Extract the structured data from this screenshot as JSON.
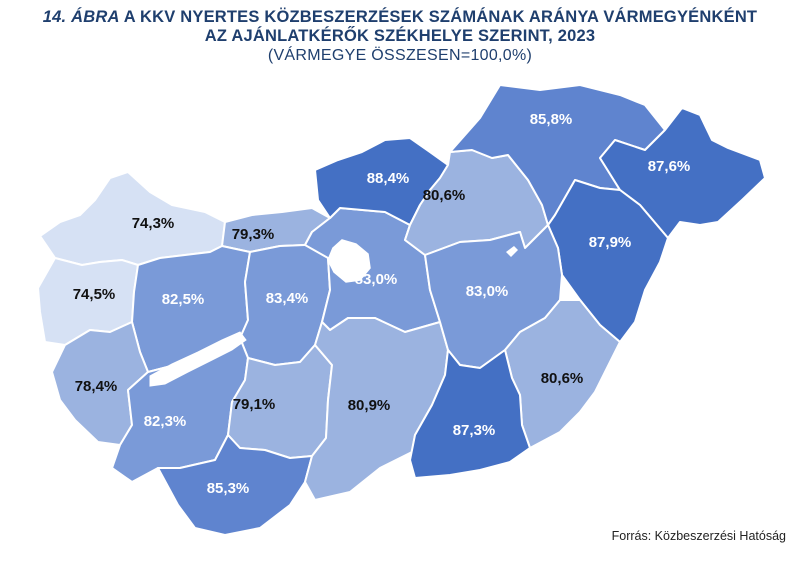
{
  "title": {
    "number": "14. ÁBRA",
    "line1_rest": " A KKV NYERTES KÖZBESZERZÉSEK SZÁMÁNAK ARÁNYA VÁRMEGYÉNKÉNT",
    "line2": "AZ AJÁNLATKÉRŐK SZÉKHELYE SZERINT, 2023"
  },
  "subtitle": "(VÁRMEGYE ÖSSZESEN=100,0%)",
  "source": "Forrás: Közbeszerzési Hatóság",
  "colors": {
    "lightest": "#d6e1f4",
    "light": "#9bb3e0",
    "medium": "#7a9ad8",
    "darker": "#5f84cf",
    "darkest": "#4470c4",
    "budapest": "#ffffff"
  },
  "counties": [
    {
      "value": "74,3%",
      "shade": "lightest",
      "text": "dark"
    },
    {
      "value": "74,5%",
      "shade": "lightest",
      "text": "dark"
    },
    {
      "value": "79,3%",
      "shade": "light",
      "text": "dark"
    },
    {
      "value": "82,5%",
      "shade": "medium",
      "text": "light"
    },
    {
      "value": "83,4%",
      "shade": "medium",
      "text": "light"
    },
    {
      "value": "78,4%",
      "shade": "light",
      "text": "dark"
    },
    {
      "value": "82,3%",
      "shade": "medium",
      "text": "light"
    },
    {
      "value": "79,1%",
      "shade": "light",
      "text": "dark"
    },
    {
      "value": "85,3%",
      "shade": "darker",
      "text": "light"
    },
    {
      "value": "83,0%",
      "shade": "medium",
      "text": "light"
    },
    {
      "value": "80,9%",
      "shade": "light",
      "text": "dark"
    },
    {
      "value": "88,4%",
      "shade": "darkest",
      "text": "light"
    },
    {
      "value": "80,6%",
      "shade": "light",
      "text": "dark"
    },
    {
      "value": "85,8%",
      "shade": "darker",
      "text": "light"
    },
    {
      "value": "87,6%",
      "shade": "darkest",
      "text": "light"
    },
    {
      "value": "87,9%",
      "shade": "darkest",
      "text": "light"
    },
    {
      "value": "83,0%",
      "shade": "medium",
      "text": "light"
    },
    {
      "value": "80,6%",
      "shade": "light",
      "text": "dark"
    },
    {
      "value": "87,3%",
      "shade": "darkest",
      "text": "light"
    }
  ]
}
